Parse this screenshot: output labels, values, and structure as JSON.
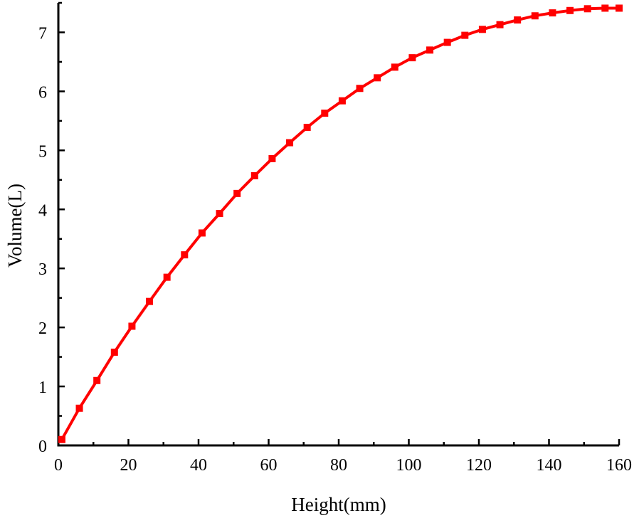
{
  "chart_data": {
    "type": "line",
    "xlabel": "Height(mm)",
    "ylabel": "Volume(L)",
    "xlim": [
      0,
      160
    ],
    "ylim": [
      0,
      7.5
    ],
    "xticks": [
      0,
      20,
      40,
      60,
      80,
      100,
      120,
      140,
      160
    ],
    "yticks": [
      0,
      1,
      2,
      3,
      4,
      5,
      6,
      7
    ],
    "grid": false,
    "series": [
      {
        "color": "#ff0000",
        "marker": "square",
        "x": [
          1,
          6,
          11,
          16,
          21,
          26,
          31,
          36,
          41,
          46,
          51,
          56,
          61,
          66,
          71,
          76,
          81,
          86,
          91,
          96,
          101,
          106,
          111,
          116,
          121,
          126,
          131,
          136,
          141,
          146,
          151,
          156,
          160
        ],
        "y": [
          0.1,
          0.63,
          1.1,
          1.58,
          2.02,
          2.44,
          2.85,
          3.23,
          3.6,
          3.93,
          4.27,
          4.57,
          4.86,
          5.13,
          5.39,
          5.63,
          5.84,
          6.05,
          6.23,
          6.41,
          6.57,
          6.7,
          6.83,
          6.95,
          7.05,
          7.13,
          7.21,
          7.28,
          7.33,
          7.37,
          7.4,
          7.41,
          7.41
        ]
      }
    ]
  }
}
